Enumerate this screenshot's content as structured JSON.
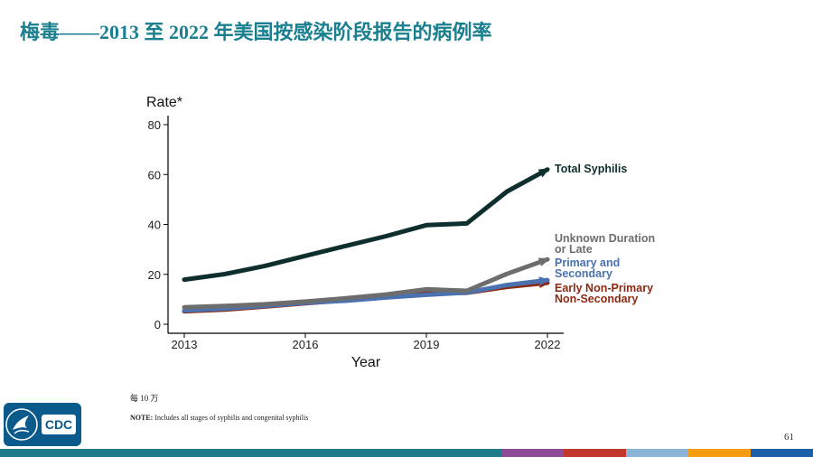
{
  "slide": {
    "title": "梅毒——2013 至 2022 年美国按感染阶段报告的病例率",
    "footnote": "每 10 万",
    "note_label": "NOTE:",
    "note_text": " Includes all stages of syphilis and congenital syphilis",
    "page_number": "61",
    "logo_text": "CDC",
    "bottom_bar_colors": [
      "#1f7b8a",
      "#8d4b98",
      "#c0392b",
      "#8cb4d9",
      "#f39c12",
      "#1a5fa8"
    ]
  },
  "chart_data": {
    "type": "line",
    "ylabel": "Rate*",
    "xlabel": "Year",
    "x": [
      2013,
      2014,
      2015,
      2016,
      2017,
      2018,
      2019,
      2020,
      2021,
      2022
    ],
    "xticks": [
      2013,
      2016,
      2019,
      2022
    ],
    "yticks": [
      0,
      20,
      40,
      60,
      80
    ],
    "ylim": [
      0,
      82
    ],
    "xlim": [
      2013,
      2022
    ],
    "grid": false,
    "series": [
      {
        "name": "Total Syphilis",
        "label_lines": [
          "Total Syphilis"
        ],
        "color": "#0f2e2e",
        "values": [
          17.9,
          20.1,
          23.4,
          27.4,
          31.4,
          35.3,
          39.7,
          40.4,
          53.2,
          62.0
        ]
      },
      {
        "name": "Unknown Duration or Late",
        "label_lines": [
          "Unknown Duration",
          "or Late"
        ],
        "color": "#6d6d6d",
        "values": [
          6.8,
          7.3,
          8.0,
          9.1,
          10.4,
          11.9,
          14.0,
          13.4,
          20.2,
          26.0
        ]
      },
      {
        "name": "Primary and Secondary",
        "label_lines": [
          "Primary and",
          "Secondary"
        ],
        "color": "#4a72b0",
        "values": [
          5.5,
          6.3,
          7.4,
          8.6,
          9.4,
          10.7,
          11.8,
          12.7,
          15.7,
          17.7
        ]
      },
      {
        "name": "Early Non-Primary Non-Secondary",
        "label_lines": [
          "Early Non-Primary",
          "Non-Secondary"
        ],
        "color": "#8b2a12",
        "values": [
          5.2,
          5.9,
          7.1,
          8.4,
          9.6,
          10.8,
          12.5,
          12.6,
          15.0,
          16.6
        ]
      }
    ]
  }
}
